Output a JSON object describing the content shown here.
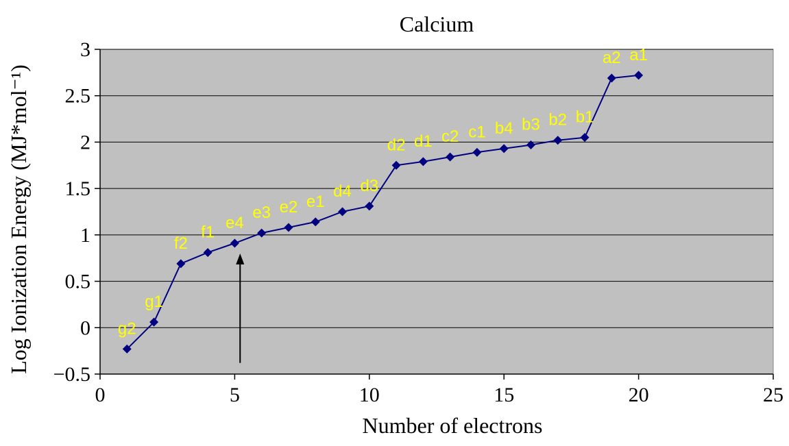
{
  "chart_data": {
    "type": "line",
    "title": "Calcium",
    "xlabel": "Number of electrons",
    "ylabel": "Log Ionization Energy (MJ*mol⁻¹)",
    "xlim": [
      0,
      25
    ],
    "ylim": [
      -0.5,
      3
    ],
    "x_ticks": [
      "0",
      "5",
      "10",
      "15",
      "20",
      "25"
    ],
    "y_ticks": [
      "−0.5",
      "0",
      "0.5",
      "1",
      "1.5",
      "2",
      "2.5",
      "3"
    ],
    "grid": true,
    "legend": "none",
    "plot_background": "#c0c0c0",
    "line_color": "#000080",
    "label_color": "#ffff00",
    "series": [
      {
        "x": [
          1,
          2,
          3,
          4,
          5,
          6,
          7,
          8,
          9,
          10,
          11,
          12,
          13,
          14,
          15,
          16,
          17,
          18,
          19,
          20
        ],
        "values": [
          -0.23,
          0.06,
          0.69,
          0.81,
          0.91,
          1.02,
          1.08,
          1.14,
          1.25,
          1.31,
          1.75,
          1.79,
          1.84,
          1.89,
          1.93,
          1.97,
          2.02,
          2.05,
          2.69,
          2.72
        ],
        "point_labels": [
          "g2",
          "g1",
          "f2",
          "f1",
          "e4",
          "e3",
          "e2",
          "e1",
          "d4",
          "d3",
          "d2",
          "d1",
          "c2",
          "c1",
          "b4",
          "b3",
          "b2",
          "b1",
          "a2",
          "a1"
        ]
      }
    ],
    "annotations": [
      {
        "type": "arrow",
        "x": 5.2,
        "y_from": -0.38,
        "y_to": 0.8
      }
    ]
  }
}
